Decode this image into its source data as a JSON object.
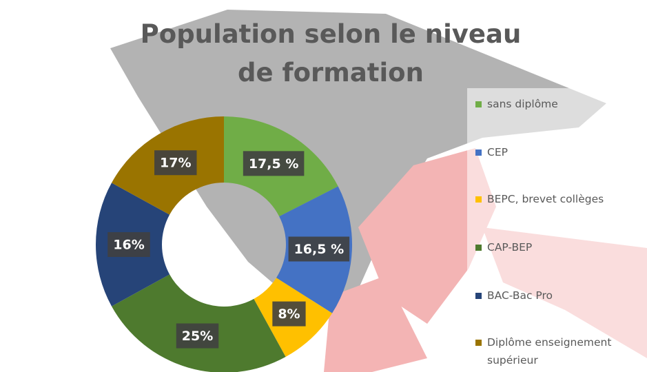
{
  "chart_data": {
    "type": "donut",
    "title": "Population selon le niveau de formation",
    "categories": [
      "sans diplôme",
      "CEP",
      "BEPC, brevet collèges",
      "CAP-BEP",
      "BAC-Bac Pro",
      "Diplôme enseignement supérieur"
    ],
    "values": [
      17.5,
      16.5,
      8,
      25,
      16,
      17
    ],
    "value_labels": [
      "17,5 %",
      "16,5 %",
      "8%",
      "25%",
      "16%",
      "17%"
    ],
    "colors": [
      "#70ad47",
      "#4472c4",
      "#ffc000",
      "#4e7a2e",
      "#264478",
      "#9a7400"
    ],
    "legend": "right"
  }
}
